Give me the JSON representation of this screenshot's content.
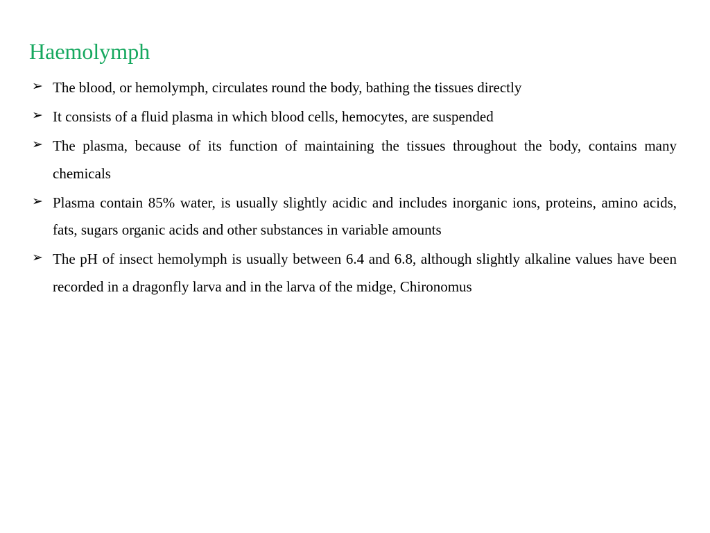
{
  "title": "Haemolymph",
  "title_color": "#16a85f",
  "body_color": "#000000",
  "bullets": [
    "The  blood, or  hemolymph, circulates  round  the  body, bathing the tissues directly",
    "It consists of a fluid plasma in which blood cells, hemocytes, are suspended",
    "The plasma, because of its function of maintaining the tissues throughout the body, contains many chemicals",
    "Plasma contain 85% water, is usually slightly acidic and includes inorganic ions, proteins, amino acids, fats, sugars organic acids and other substances in variable amounts",
    "The pH of insect hemolymph is usually between 6.4 and 6.8, although slightly alkaline values have been recorded in a  dragonfly  larva  and  in  the  larva  of the  midge, Chironomus"
  ]
}
